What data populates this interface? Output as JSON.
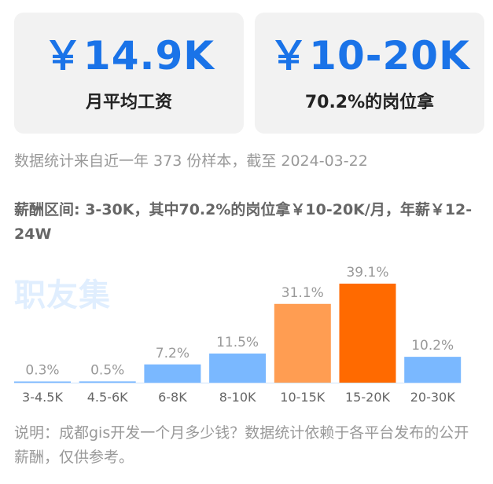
{
  "cards": [
    {
      "value": "￥14.9K",
      "caption": "月平均工资"
    },
    {
      "value": "￥10-20K",
      "caption": "70.2%的岗位拿"
    }
  ],
  "stats_text": "数据统计来自近一年 373 份样本，截至 2024-03-22",
  "salary_range_text": "薪酬区间: 3-30K，其中70.2%的岗位拿￥10-20K/月，年薪￥12-24W",
  "watermark": "职友集",
  "colors": {
    "card_value": "#1a73e8",
    "bar_default": "#7ab8ff",
    "bar_orange": "#ff9d52",
    "bar_highlight": "#ff6a00",
    "axis": "#cfe3fb"
  },
  "chart_data": {
    "type": "bar",
    "categories": [
      "3-4.5K",
      "4.5-6K",
      "6-8K",
      "8-10K",
      "10-15K",
      "15-20K",
      "20-30K"
    ],
    "values": [
      0.3,
      0.5,
      7.2,
      11.5,
      31.1,
      39.1,
      10.2
    ],
    "value_labels": [
      "0.3%",
      "0.5%",
      "7.2%",
      "11.5%",
      "31.1%",
      "39.1%",
      "10.2%"
    ],
    "bar_colors": [
      "#7ab8ff",
      "#7ab8ff",
      "#7ab8ff",
      "#7ab8ff",
      "#ff9d52",
      "#ff6a00",
      "#7ab8ff"
    ],
    "title": "",
    "xlabel": "",
    "ylabel": "",
    "ylim": [
      0,
      39.1
    ],
    "grid": false
  },
  "note_text": "说明：成都gis开发一个月多少钱？数据统计依赖于各平台发布的公开薪酬，仅供参考。"
}
